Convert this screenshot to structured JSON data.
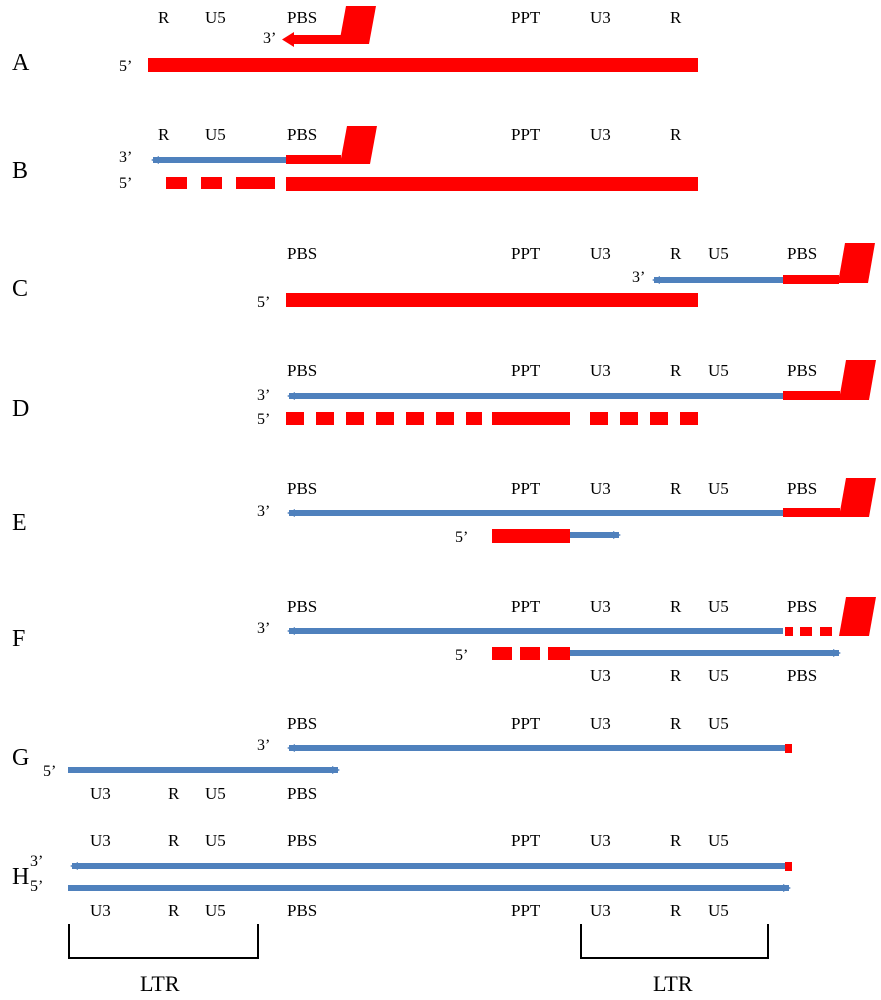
{
  "colors": {
    "rna": "#ff0000",
    "dna": "#4f81bd",
    "bracket": "#000000"
  },
  "rows": {
    "A": {
      "letter": "A",
      "top": [
        "R",
        "U5",
        "PBS",
        "PPT",
        "U3",
        "R"
      ],
      "ends": [
        "3’",
        "5’"
      ]
    },
    "B": {
      "letter": "B",
      "top": [
        "R",
        "U5",
        "PBS",
        "PPT",
        "U3",
        "R"
      ],
      "ends": [
        "3’",
        "5’"
      ]
    },
    "C": {
      "letter": "C",
      "top": [
        "PBS",
        "PPT",
        "U3",
        "R",
        "U5",
        "PBS"
      ],
      "ends": [
        "3’",
        "5’"
      ]
    },
    "D": {
      "letter": "D",
      "top": [
        "PBS",
        "PPT",
        "U3",
        "R",
        "U5",
        "PBS"
      ],
      "ends": [
        "3’",
        "5’"
      ]
    },
    "E": {
      "letter": "E",
      "top": [
        "PBS",
        "PPT",
        "U3",
        "R",
        "U5",
        "PBS"
      ],
      "ends": [
        "3’",
        "5’"
      ]
    },
    "F": {
      "letter": "F",
      "top": [
        "PBS",
        "PPT",
        "U3",
        "R",
        "U5",
        "PBS"
      ],
      "bottom": [
        "U3",
        "R",
        "U5",
        "PBS"
      ],
      "ends": [
        "3’",
        "5’"
      ]
    },
    "G": {
      "letter": "G",
      "top": [
        "PBS",
        "PPT",
        "U3",
        "R",
        "U5"
      ],
      "bottom": [
        "U3",
        "R",
        "U5",
        "PBS"
      ],
      "ends": [
        "3’",
        "5’"
      ]
    },
    "H": {
      "letter": "H",
      "top": [
        "U3",
        "R",
        "U5",
        "PBS",
        "PPT",
        "U3",
        "R",
        "U5"
      ],
      "bottom": [
        "U3",
        "R",
        "U5",
        "PBS",
        "PPT",
        "U3",
        "R",
        "U5"
      ],
      "ends": [
        "3’",
        "5’"
      ]
    }
  },
  "ltr_labels": [
    "LTR",
    "LTR"
  ]
}
